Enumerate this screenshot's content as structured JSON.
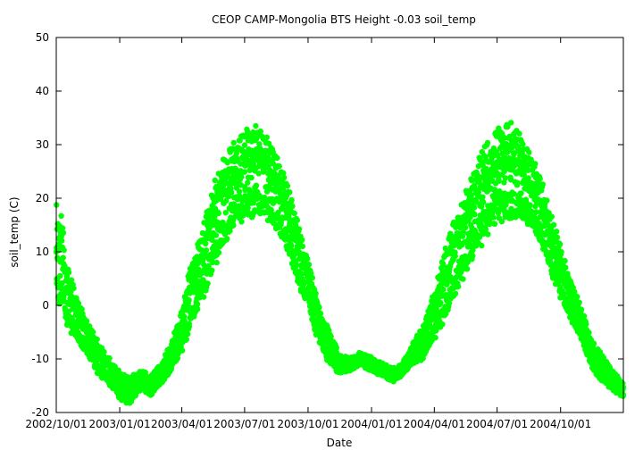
{
  "chart_data": {
    "type": "scatter",
    "title": "CEOP CAMP-Mongolia BTS Height -0.03 soil_temp",
    "xlabel": "Date",
    "ylabel": "soil_temp (C)",
    "ylim": [
      -20,
      50
    ],
    "yticks": [
      -20,
      -10,
      0,
      10,
      20,
      30,
      40,
      50
    ],
    "xlim": [
      "2002-10-01",
      "2004-12-31"
    ],
    "xticks": [
      {
        "date": "2002-10-01",
        "label": "2002/10/01"
      },
      {
        "date": "2003-01-01",
        "label": "2003/01/01"
      },
      {
        "date": "2003-04-01",
        "label": "2003/04/01"
      },
      {
        "date": "2003-07-01",
        "label": "2003/07/01"
      },
      {
        "date": "2003-10-01",
        "label": "2003/10/01"
      },
      {
        "date": "2004-01-01",
        "label": "2004/01/01"
      },
      {
        "date": "2004-04-01",
        "label": "2004/04/01"
      },
      {
        "date": "2004-07-01",
        "label": "2004/07/01"
      },
      {
        "date": "2004-10-01",
        "label": "2004/10/01"
      }
    ],
    "grid": false,
    "color": "#00ff00",
    "series": [
      {
        "x": [
          "2002-10-01",
          "2002-10-08",
          "2002-10-15",
          "2002-10-22",
          "2002-11-01",
          "2002-11-15",
          "2002-12-01",
          "2002-12-15",
          "2003-01-01",
          "2003-01-15",
          "2003-02-01",
          "2003-02-15",
          "2003-03-01",
          "2003-03-15",
          "2003-04-01",
          "2003-04-15",
          "2003-05-01",
          "2003-05-15",
          "2003-06-01",
          "2003-06-15",
          "2003-07-01",
          "2003-07-15",
          "2003-08-01",
          "2003-08-15",
          "2003-09-01",
          "2003-09-15",
          "2003-10-01",
          "2003-10-15",
          "2003-11-01",
          "2003-11-15",
          "2003-12-01",
          "2003-12-15",
          "2004-01-01",
          "2004-01-15",
          "2004-02-01",
          "2004-02-15",
          "2004-03-01",
          "2004-03-15",
          "2004-04-01",
          "2004-04-15",
          "2004-05-01",
          "2004-05-15",
          "2004-06-01",
          "2004-06-15",
          "2004-07-01",
          "2004-07-15",
          "2004-08-01",
          "2004-08-15",
          "2004-09-01",
          "2004-09-15",
          "2004-10-01",
          "2004-10-15",
          "2004-11-01",
          "2004-11-15",
          "2004-12-01",
          "2004-12-15",
          "2004-12-31"
        ],
        "y": [
          8,
          9,
          2,
          0,
          -3,
          -6,
          -10,
          -12,
          -15,
          -16,
          -14,
          -15,
          -13,
          -10,
          -5,
          2,
          7,
          14,
          19,
          22,
          24,
          25,
          24,
          21,
          16,
          10,
          4,
          -3,
          -8,
          -11,
          -11,
          -10,
          -11,
          -12,
          -13,
          -12,
          -9,
          -7,
          -2,
          3,
          9,
          13,
          18,
          21,
          24,
          25,
          24,
          22,
          18,
          12,
          6,
          1,
          -4,
          -9,
          -12,
          -14,
          -16
        ],
        "spread": [
          16,
          14,
          10,
          8,
          6,
          5,
          5,
          4,
          4,
          4,
          3,
          3,
          3,
          4,
          6,
          10,
          11,
          12,
          13,
          13,
          13,
          13,
          12,
          11,
          10,
          9,
          7,
          6,
          5,
          3,
          2,
          2,
          2,
          2,
          2,
          2,
          3,
          5,
          7,
          10,
          11,
          12,
          13,
          14,
          14,
          15,
          13,
          11,
          10,
          9,
          8,
          6,
          5,
          4,
          4,
          3,
          2
        ]
      }
    ]
  }
}
